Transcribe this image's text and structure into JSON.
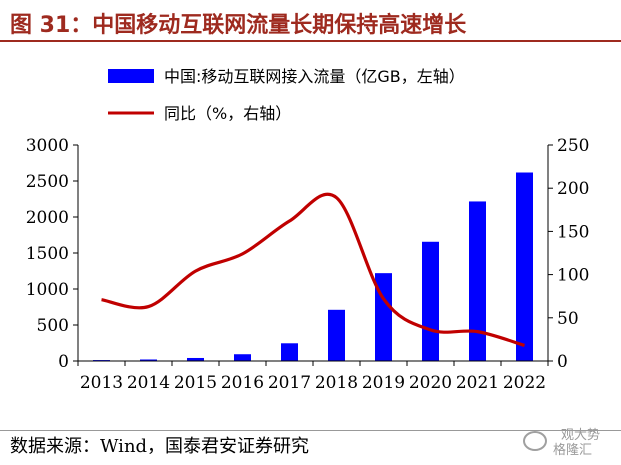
{
  "title": "图 31：中国移动互联网流量长期保持高速增长",
  "source": "数据来源：Wind，国泰君安证券研究",
  "watermark": {
    "line1": "观大势",
    "line2": "格隆汇"
  },
  "colors": {
    "bar": "#0000ff",
    "line": "#c00000",
    "title": "#9e2a1f"
  },
  "chart_data": {
    "type": "bar",
    "categories": [
      "2013",
      "2014",
      "2015",
      "2016",
      "2017",
      "2018",
      "2019",
      "2020",
      "2021",
      "2022"
    ],
    "series": [
      {
        "name": "中国:移动互联网接入流量（亿GB，左轴）",
        "type": "bar",
        "axis": "left",
        "values": [
          13,
          21,
          42,
          94,
          246,
          711,
          1220,
          1656,
          2216,
          2618
        ]
      },
      {
        "name": "同比（%，右轴）",
        "type": "line",
        "axis": "right",
        "values": [
          71,
          63,
          104,
          124,
          162,
          189,
          72,
          36,
          34,
          18
        ]
      }
    ],
    "left_axis": {
      "ylim": [
        0,
        3000
      ],
      "ticks": [
        "0",
        "500",
        "1000",
        "1500",
        "2000",
        "2500",
        "3000"
      ]
    },
    "right_axis": {
      "ylim": [
        0,
        250
      ],
      "ticks": [
        "0",
        "50",
        "100",
        "150",
        "200",
        "250"
      ]
    },
    "legend_position": "top-left",
    "grid": false
  }
}
